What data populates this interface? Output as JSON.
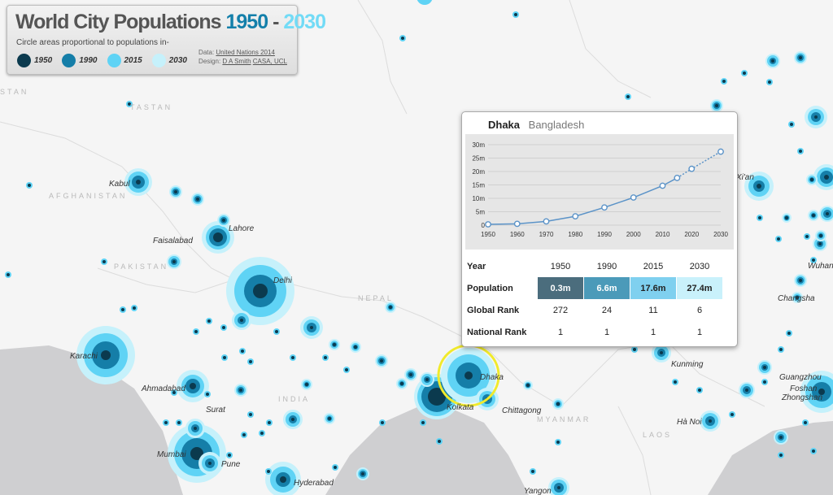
{
  "title": {
    "prefix": "World City Populations",
    "year_start": "1950",
    "dash": "-",
    "year_end": "2030"
  },
  "subtitle": "Circle areas proportional to populations in-",
  "credits": {
    "data_label": "Data:",
    "data_link": "United Nations 2014",
    "design_label": "Design:",
    "design_author": "D A Smith",
    "design_org": "CASA, UCL"
  },
  "legend": [
    {
      "label": "1950",
      "color": "#0b3a4e"
    },
    {
      "label": "1990",
      "color": "#157ea8"
    },
    {
      "label": "2015",
      "color": "#5fd3f5"
    },
    {
      "label": "2030",
      "color": "#c6f1fb"
    }
  ],
  "map": {
    "country_labels": [
      "STAN",
      "TASTAN",
      "AFGHANISTAN",
      "PAKISTAN",
      "NEPAL",
      "INDIA",
      "MYANMAR",
      "LAOS"
    ],
    "city_labels": [
      "Kabul",
      "Lahore",
      "Faisalabad",
      "Delhi",
      "Karachi",
      "Ahmadabad",
      "Surat",
      "Mumbai",
      "Pune",
      "Hyderabad",
      "Kolkata",
      "Dhaka",
      "Chittagong",
      "Yangon",
      "Kunming",
      "Hà Noi",
      "Changsha",
      "Wuhan",
      "Guangzhou",
      "Foshan",
      "Zhongshan",
      "Xi'an"
    ]
  },
  "popup": {
    "city": "Dhaka",
    "country": "Bangladesh",
    "chart_data": {
      "type": "line",
      "x": [
        1950,
        1960,
        1970,
        1980,
        1990,
        2000,
        2010,
        2015,
        2020,
        2030
      ],
      "y": [
        0.3,
        0.5,
        1.4,
        3.3,
        6.6,
        10.3,
        14.7,
        17.6,
        21.0,
        27.4
      ],
      "projected_from": 2015,
      "xticks": [
        "1950",
        "1960",
        "1970",
        "1980",
        "1990",
        "2000",
        "2010",
        "2020",
        "2030"
      ],
      "yticks": [
        "0",
        "5m",
        "10m",
        "15m",
        "20m",
        "25m",
        "30m"
      ],
      "ylim": [
        0,
        30
      ],
      "xlim": [
        1950,
        2030
      ],
      "grid": true
    },
    "table": {
      "year_header": "Year",
      "years": [
        "1950",
        "1990",
        "2015",
        "2030"
      ],
      "population_header": "Population",
      "population": [
        "0.3m",
        "6.6m",
        "17.6m",
        "27.4m"
      ],
      "population_colors": [
        "#4b6d7d",
        "#4b9ab9",
        "#7fd0ef",
        "#c9f1fb"
      ],
      "global_rank_header": "Global Rank",
      "global_rank": [
        "272",
        "24",
        "11",
        "6"
      ],
      "national_rank_header": "National Rank",
      "national_rank": [
        "1",
        "1",
        "1",
        "1"
      ]
    }
  }
}
